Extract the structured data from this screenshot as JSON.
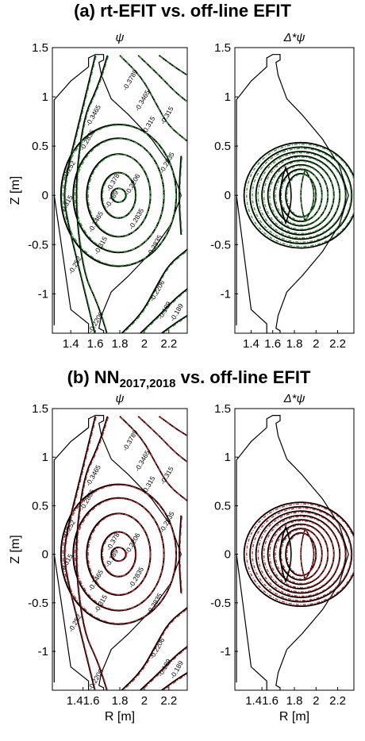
{
  "chart_data": [
    {
      "type": "contour",
      "panel_title": "(a) rt-EFIT vs. off-line EFIT",
      "title": "ψ",
      "xlabel": "",
      "ylabel": "Z [m]",
      "xlim": [
        1.25,
        2.35
      ],
      "ylim": [
        -1.4,
        1.5
      ],
      "xticks": [
        "1.4",
        "1.6",
        "1.8",
        "2",
        "2.2"
      ],
      "xtick_values": [
        1.4,
        1.6,
        1.8,
        2.0,
        2.2
      ],
      "yticks": [
        "1.5",
        "1",
        "0.5",
        "0",
        "-0.5",
        "-1"
      ],
      "ytick_values": [
        1.5,
        1.0,
        0.5,
        0.0,
        -0.5,
        -1.0
      ],
      "series": [
        {
          "name": "rt-EFIT",
          "color": "#2ca02c",
          "style": "dash-dot"
        },
        {
          "name": "off-line EFIT",
          "color": "#000000",
          "style": "solid"
        }
      ],
      "contour_labels": [
        "-0.3789",
        "-0.3465",
        "-0.315",
        "-0.2835",
        "-0.252",
        "-0.2206",
        "-0.189",
        "-0.378",
        "-0.3465",
        "-0.315",
        "-0.2835",
        "-0.252",
        "-0.2206",
        "-0.189",
        "-0.315",
        "-0.2835",
        "-0.3465",
        "-0.315",
        "-0.2835",
        "-0.2206",
        "-0.189"
      ]
    },
    {
      "type": "contour",
      "title": "Δ*ψ",
      "xlabel": "",
      "ylabel": "",
      "xlim": [
        1.25,
        2.35
      ],
      "ylim": [
        -1.4,
        1.5
      ],
      "xticks": [
        "1.4",
        "1.6",
        "1.8",
        "2",
        "2.2"
      ],
      "xtick_values": [
        1.4,
        1.6,
        1.8,
        2.0,
        2.2
      ],
      "yticks": [
        "1.5",
        "1",
        "0.5",
        "0",
        "-0.5",
        "-1"
      ],
      "ytick_values": [
        1.5,
        1.0,
        0.5,
        0.0,
        -0.5,
        -1.0
      ],
      "series": [
        {
          "name": "rt-EFIT",
          "color": "#2ca02c",
          "style": "dash-dot"
        },
        {
          "name": "off-line EFIT",
          "color": "#000000",
          "style": "solid"
        }
      ]
    },
    {
      "type": "contour",
      "panel_title_main": "(b) NN",
      "panel_title_sub": "2017,2018",
      "panel_title_end": " vs. off-line EFIT",
      "title": "ψ",
      "xlabel": "R [m]",
      "ylabel": "Z [m]",
      "xlim": [
        1.25,
        2.35
      ],
      "ylim": [
        -1.4,
        1.5
      ],
      "xticks": [
        "1.41.6",
        "1.8",
        "2",
        "2.2"
      ],
      "xtick_values": [
        1.5,
        1.8,
        2.0,
        2.2
      ],
      "yticks": [
        "1.5",
        "1",
        "0.5",
        "0",
        "-0.5",
        "-1"
      ],
      "ytick_values": [
        1.5,
        1.0,
        0.5,
        0.0,
        -0.5,
        -1.0
      ],
      "series": [
        {
          "name": "NN2017,2018",
          "color": "#d62728",
          "style": "dash-dot"
        },
        {
          "name": "off-line EFIT",
          "color": "#000000",
          "style": "solid"
        }
      ],
      "contour_labels": [
        "-0.3789",
        "-0.3465",
        "-0.315",
        "-0.2835",
        "-0.252",
        "-0.2206",
        "-0.189",
        "-0.378",
        "-0.3465",
        "-0.315",
        "-0.2835",
        "-0.252",
        "-0.2206",
        "-0.189",
        "-0.315",
        "-0.2835",
        "-0.3465",
        "-0.315",
        "-0.2835",
        "-0.2206",
        "-0.189"
      ]
    },
    {
      "type": "contour",
      "title": "Δ*ψ",
      "xlabel": "R [m]",
      "ylabel": "",
      "xlim": [
        1.25,
        2.35
      ],
      "ylim": [
        -1.4,
        1.5
      ],
      "xticks": [
        "1.41.6",
        "1.8",
        "2",
        "2.2"
      ],
      "xtick_values": [
        1.5,
        1.8,
        2.0,
        2.2
      ],
      "yticks": [
        "1.5",
        "1",
        "0.5",
        "0",
        "-0.5",
        "-1"
      ],
      "ytick_values": [
        1.5,
        1.0,
        0.5,
        0.0,
        -0.5,
        -1.0
      ],
      "series": [
        {
          "name": "NN2017,2018",
          "color": "#d62728",
          "style": "dash-dot"
        },
        {
          "name": "off-line EFIT",
          "color": "#000000",
          "style": "solid"
        }
      ]
    }
  ]
}
